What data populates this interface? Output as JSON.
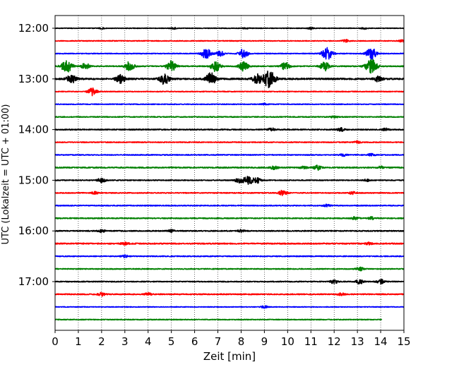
{
  "chart_data": {
    "type": "line",
    "title": "",
    "xlabel": "Zeit  [min]",
    "ylabel": "UTC (Lokalzeit = UTC + 01:00)",
    "xlim": [
      0,
      15
    ],
    "x_ticks": [
      "0",
      "1",
      "2",
      "3",
      "4",
      "5",
      "6",
      "7",
      "8",
      "9",
      "10",
      "11",
      "12",
      "13",
      "14",
      "15"
    ],
    "y_ticks": [
      "12:00",
      "13:00",
      "14:00",
      "15:00",
      "16:00",
      "17:00"
    ],
    "grid": "vertical dotted",
    "legend": "none",
    "trace_interval_min": 15,
    "trace_colors": [
      "#000000",
      "#ff0000",
      "#0000ff",
      "#008000"
    ],
    "series": [
      {
        "start": "12:00",
        "color": "#000000",
        "noise": 0.25,
        "bursts": [
          [
            2.0,
            0.6
          ],
          [
            5.1,
            0.6
          ],
          [
            8.2,
            0.5
          ],
          [
            11.0,
            0.7
          ],
          [
            13.3,
            0.6
          ]
        ]
      },
      {
        "start": "12:15",
        "color": "#ff0000",
        "noise": 0.3,
        "bursts": [
          [
            12.5,
            1.0
          ],
          [
            14.9,
            0.9
          ]
        ]
      },
      {
        "start": "12:30",
        "color": "#0000ff",
        "noise": 0.3,
        "bursts": [
          [
            6.5,
            4.0
          ],
          [
            8.1,
            3.5
          ],
          [
            11.7,
            4.8
          ],
          [
            13.6,
            4.5
          ],
          [
            7.1,
            2.0
          ]
        ]
      },
      {
        "start": "12:45",
        "color": "#008000",
        "noise": 0.4,
        "bursts": [
          [
            0.5,
            5.0
          ],
          [
            1.3,
            2.5
          ],
          [
            3.2,
            3.5
          ],
          [
            5.0,
            4.0
          ],
          [
            6.9,
            4.0
          ],
          [
            8.1,
            3.5
          ],
          [
            9.9,
            3.0
          ],
          [
            11.6,
            3.5
          ],
          [
            13.6,
            5.5
          ]
        ]
      },
      {
        "start": "13:00",
        "color": "#000000",
        "noise": 0.6,
        "bursts": [
          [
            0.7,
            3.5
          ],
          [
            2.8,
            3.5
          ],
          [
            4.7,
            4.0
          ],
          [
            6.7,
            4.5
          ],
          [
            8.7,
            3.5
          ],
          [
            9.2,
            6.5
          ],
          [
            13.9,
            2.0
          ]
        ]
      },
      {
        "start": "13:15",
        "color": "#ff0000",
        "noise": 0.3,
        "bursts": [
          [
            1.6,
            3.0
          ]
        ]
      },
      {
        "start": "13:30",
        "color": "#0000ff",
        "noise": 0.3,
        "bursts": [
          [
            9.0,
            0.6
          ]
        ]
      },
      {
        "start": "13:45",
        "color": "#008000",
        "noise": 0.35,
        "bursts": [
          [
            12.0,
            1.0
          ]
        ]
      },
      {
        "start": "14:00",
        "color": "#000000",
        "noise": 0.4,
        "bursts": [
          [
            9.3,
            1.2
          ],
          [
            12.3,
            1.2
          ],
          [
            14.2,
            1.0
          ]
        ]
      },
      {
        "start": "14:15",
        "color": "#ff0000",
        "noise": 0.35,
        "bursts": [
          [
            13.0,
            0.9
          ]
        ]
      },
      {
        "start": "14:30",
        "color": "#0000ff",
        "noise": 0.35,
        "bursts": [
          [
            12.4,
            1.0
          ],
          [
            13.6,
            1.0
          ]
        ]
      },
      {
        "start": "14:45",
        "color": "#008000",
        "noise": 0.45,
        "bursts": [
          [
            9.4,
            1.5
          ],
          [
            10.7,
            1.0
          ],
          [
            11.3,
            1.8
          ],
          [
            14.0,
            0.9
          ]
        ]
      },
      {
        "start": "15:00",
        "color": "#000000",
        "noise": 0.35,
        "bursts": [
          [
            2.0,
            1.8
          ],
          [
            7.9,
            2.0
          ],
          [
            8.3,
            3.5
          ],
          [
            8.7,
            2.0
          ],
          [
            13.4,
            0.9
          ]
        ]
      },
      {
        "start": "15:15",
        "color": "#ff0000",
        "noise": 0.35,
        "bursts": [
          [
            1.7,
            1.0
          ],
          [
            9.8,
            2.2
          ],
          [
            12.8,
            1.0
          ]
        ]
      },
      {
        "start": "15:30",
        "color": "#0000ff",
        "noise": 0.35,
        "bursts": [
          [
            11.7,
            1.0
          ]
        ]
      },
      {
        "start": "15:45",
        "color": "#008000",
        "noise": 0.4,
        "bursts": [
          [
            12.9,
            1.0
          ],
          [
            13.6,
            1.0
          ]
        ]
      },
      {
        "start": "16:00",
        "color": "#000000",
        "noise": 0.4,
        "bursts": [
          [
            2.0,
            1.0
          ],
          [
            5.0,
            0.9
          ],
          [
            8.0,
            0.9
          ]
        ]
      },
      {
        "start": "16:15",
        "color": "#ff0000",
        "noise": 0.45,
        "bursts": [
          [
            3.0,
            1.2
          ],
          [
            13.5,
            0.8
          ]
        ]
      },
      {
        "start": "16:30",
        "color": "#0000ff",
        "noise": 0.35,
        "bursts": [
          [
            3.0,
            0.9
          ]
        ]
      },
      {
        "start": "16:45",
        "color": "#008000",
        "noise": 0.35,
        "bursts": [
          [
            13.1,
            1.6
          ]
        ]
      },
      {
        "start": "17:00",
        "color": "#000000",
        "noise": 0.35,
        "bursts": [
          [
            12.0,
            1.6
          ],
          [
            13.1,
            1.8
          ],
          [
            14.0,
            1.8
          ]
        ]
      },
      {
        "start": "17:15",
        "color": "#ff0000",
        "noise": 0.4,
        "bursts": [
          [
            2.0,
            1.2
          ],
          [
            4.0,
            1.0
          ],
          [
            12.3,
            1.0
          ]
        ]
      },
      {
        "start": "17:30",
        "color": "#0000ff",
        "noise": 0.25,
        "bursts": [
          [
            9.0,
            0.9
          ]
        ]
      },
      {
        "start": "17:45",
        "color": "#008000",
        "noise": 0.3,
        "bursts": [
          [
            14.05,
            0.0
          ]
        ],
        "end": 14.05
      }
    ]
  }
}
